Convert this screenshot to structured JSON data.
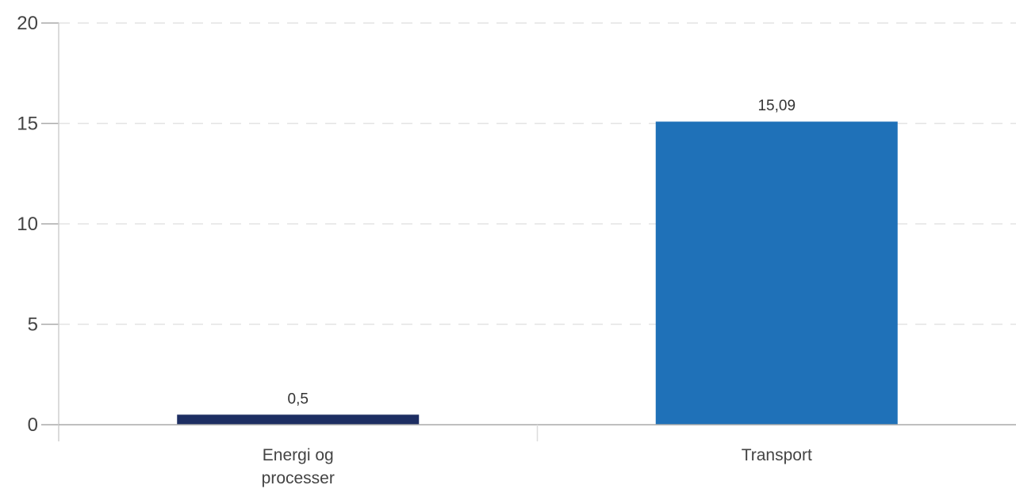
{
  "chart_data": {
    "type": "bar",
    "categories": [
      [
        "Energi og",
        "processer"
      ],
      [
        "Transport"
      ]
    ],
    "values": [
      0.5,
      15.09
    ],
    "value_labels": [
      "0,5",
      "15,09"
    ],
    "bar_colors": [
      "#1d2e62",
      "#1f71b8"
    ],
    "yticks": [
      0,
      5,
      10,
      15,
      20
    ],
    "ytick_labels": [
      "0",
      "5",
      "10",
      "15",
      "20"
    ],
    "ylim": [
      0,
      20
    ],
    "grid": true,
    "title": "",
    "xlabel": "",
    "ylabel": ""
  }
}
